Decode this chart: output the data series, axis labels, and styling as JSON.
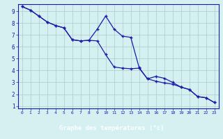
{
  "title": "Graphe des températures (°c)",
  "bg_color": "#d4f0f0",
  "footer_color": "#1a1a8c",
  "grid_color": "#aacccc",
  "line_color": "#1a1aaa",
  "marker_color": "#1a1aaa",
  "xlim": [
    -0.5,
    23.5
  ],
  "ylim": [
    0.8,
    9.6
  ],
  "xticks": [
    0,
    1,
    2,
    3,
    4,
    5,
    6,
    7,
    8,
    9,
    10,
    11,
    12,
    13,
    14,
    15,
    16,
    17,
    18,
    19,
    20,
    21,
    22,
    23
  ],
  "yticks": [
    1,
    2,
    3,
    4,
    5,
    6,
    7,
    8,
    9
  ],
  "line1_x": [
    0,
    1,
    2,
    3,
    4,
    5,
    6,
    7,
    8,
    9,
    10,
    11,
    12,
    13,
    14,
    15,
    16,
    17,
    18,
    19,
    20,
    21,
    22,
    23
  ],
  "line1_y": [
    9.4,
    9.1,
    8.6,
    8.1,
    7.8,
    7.6,
    6.6,
    6.5,
    6.55,
    7.5,
    8.6,
    7.5,
    6.9,
    6.8,
    4.25,
    3.3,
    3.5,
    3.35,
    3.0,
    2.6,
    2.4,
    1.8,
    1.7,
    1.3
  ],
  "line2_x": [
    0,
    1,
    2,
    3,
    4,
    5,
    6,
    7,
    8,
    9,
    10,
    11,
    12,
    13,
    14,
    15,
    16,
    17,
    18,
    19,
    20,
    21,
    22,
    23
  ],
  "line2_y": [
    9.4,
    9.1,
    8.6,
    8.1,
    7.8,
    7.6,
    6.6,
    6.5,
    6.55,
    6.5,
    5.35,
    4.3,
    4.2,
    4.15,
    4.2,
    3.3,
    3.1,
    2.95,
    2.85,
    2.6,
    2.4,
    1.8,
    1.7,
    1.3
  ]
}
